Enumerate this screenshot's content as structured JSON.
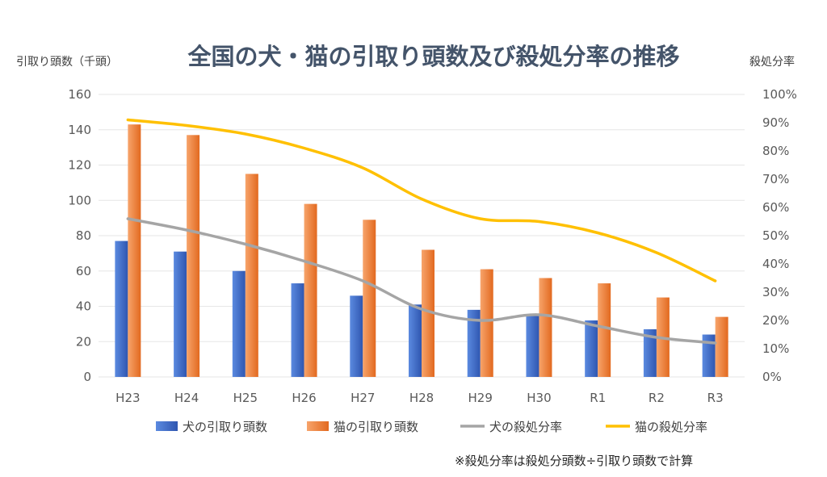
{
  "chart_data": {
    "type": "bar",
    "title": "全国の犬・猫の引取り頭数及び殺処分率の推移",
    "ylabel_left": "引取り頭数（千頭）",
    "ylabel_right": "殺処分率",
    "ylim_left": [
      0,
      160
    ],
    "ylim_right": [
      0,
      100
    ],
    "yticks_left": [
      "0",
      "20",
      "40",
      "60",
      "80",
      "100",
      "120",
      "140",
      "160"
    ],
    "yticks_right": [
      "0%",
      "10%",
      "20%",
      "30%",
      "40%",
      "50%",
      "60%",
      "70%",
      "80%",
      "90%",
      "100%"
    ],
    "categories": [
      "H23",
      "H24",
      "H25",
      "H26",
      "H27",
      "H28",
      "H29",
      "H30",
      "R1",
      "R2",
      "R3"
    ],
    "grid": true,
    "legend_position": "bottom",
    "series": [
      {
        "name": "犬の引取り頭数",
        "kind": "bar",
        "axis": "left",
        "color": "#4472c4",
        "values": [
          77,
          71,
          60,
          53,
          46,
          41,
          38,
          35,
          32,
          27,
          24
        ]
      },
      {
        "name": "猫の引取り頭数",
        "kind": "bar",
        "axis": "left",
        "color": "#ed7d31",
        "values": [
          143,
          137,
          115,
          98,
          89,
          72,
          61,
          56,
          53,
          45,
          34
        ]
      },
      {
        "name": "犬の殺処分率",
        "kind": "line",
        "axis": "right",
        "color": "#a5a5a5",
        "values": [
          56,
          52,
          47,
          41,
          34,
          24,
          20,
          22,
          18,
          14,
          12
        ]
      },
      {
        "name": "猫の殺処分率",
        "kind": "line",
        "axis": "right",
        "color": "#ffc000",
        "values": [
          91,
          89,
          86,
          81,
          74,
          63,
          56,
          55,
          51,
          44,
          34
        ]
      }
    ],
    "note": "※殺処分率は殺処分頭数÷引取り頭数で計算"
  }
}
